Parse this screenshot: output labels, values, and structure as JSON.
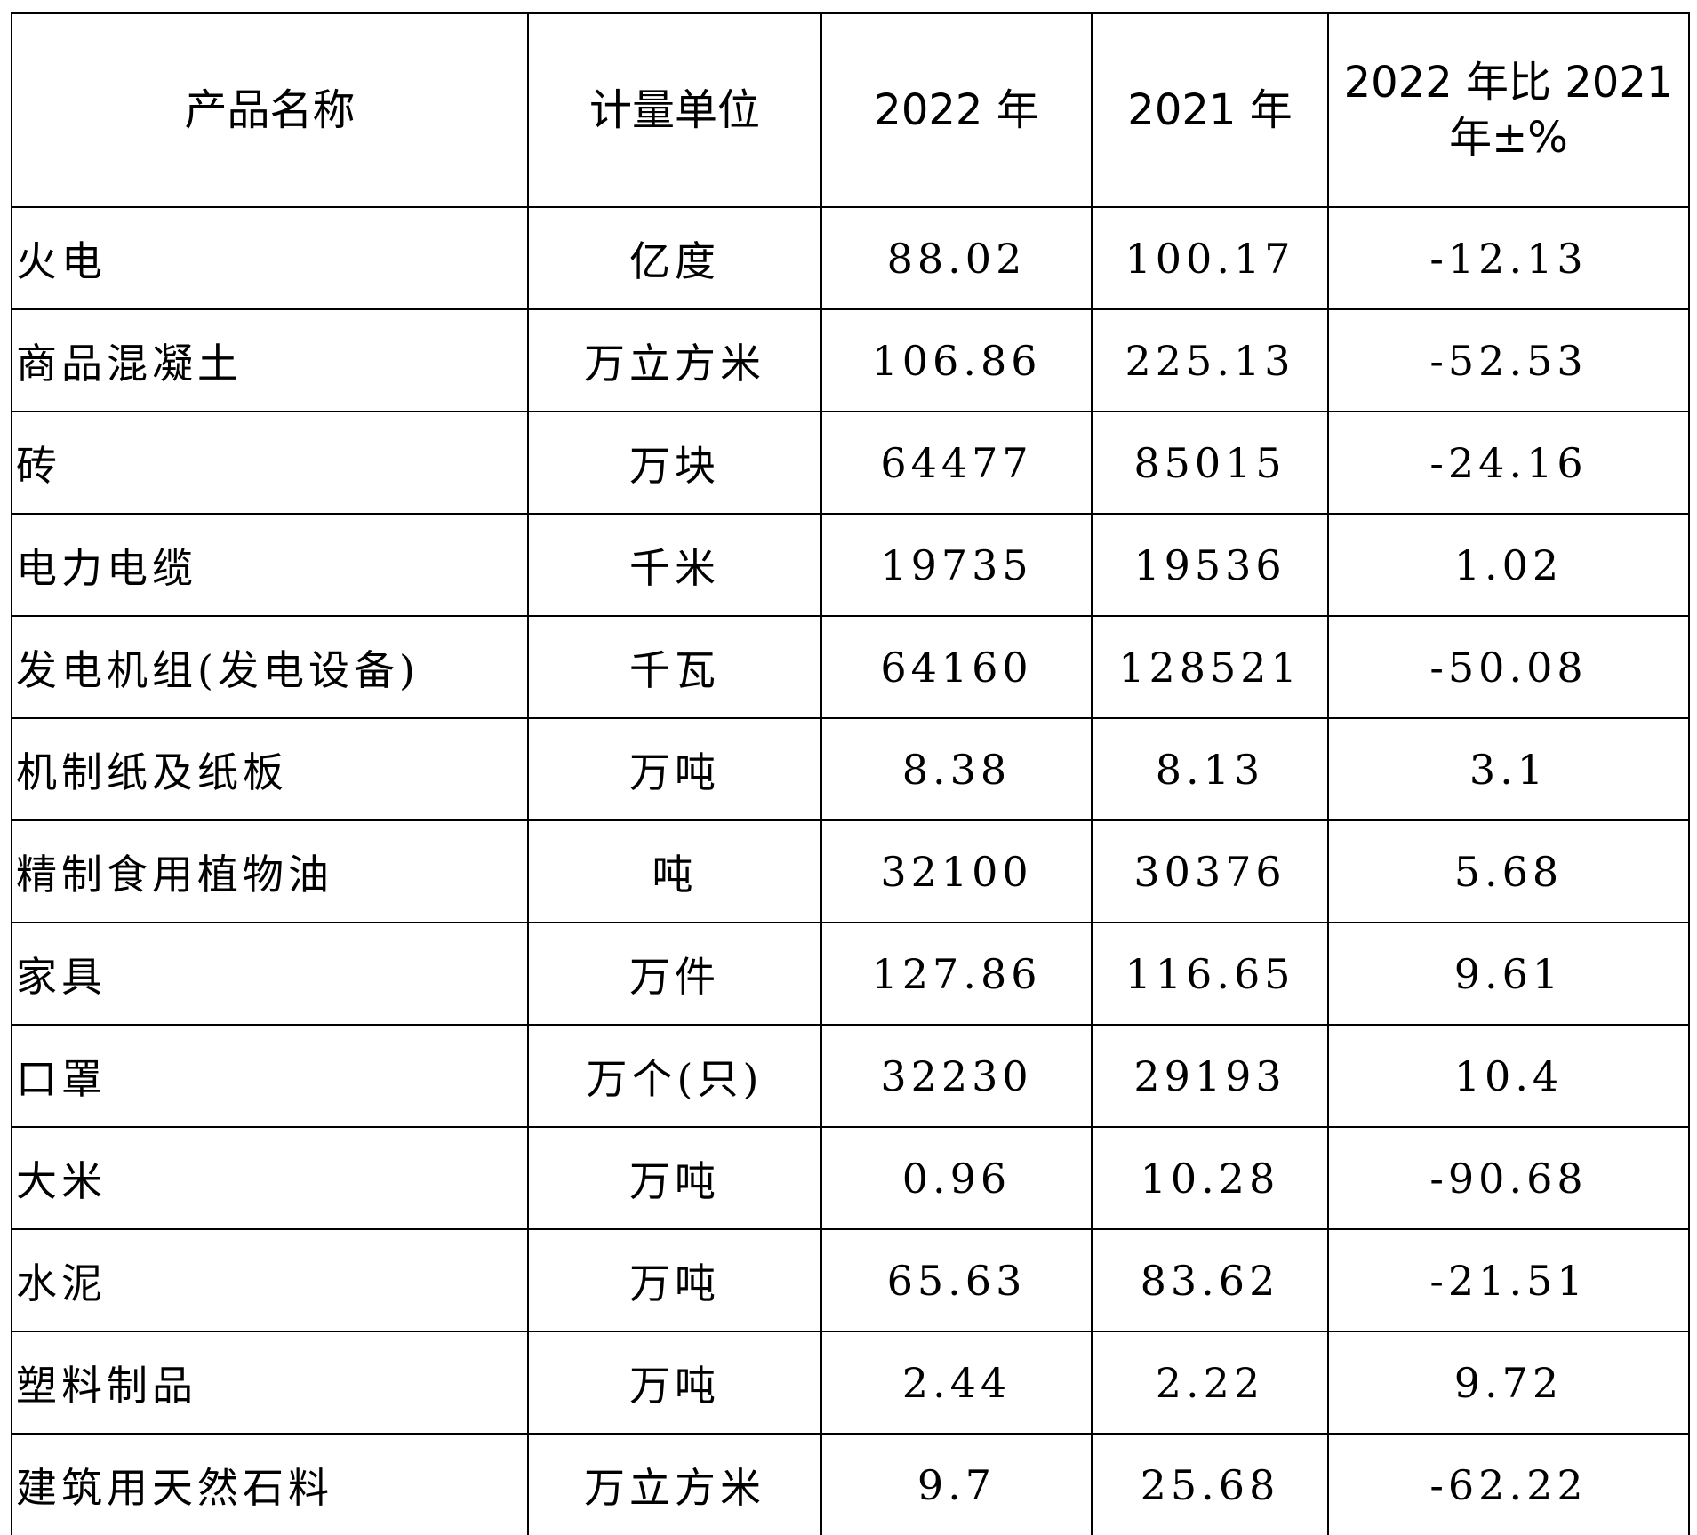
{
  "table": {
    "header": [
      "产品名称",
      "计量单位",
      "2022 年",
      "2021 年",
      "2022 年比 2021 年±%"
    ],
    "rows": [
      [
        "火电",
        "亿度",
        "88.02",
        "100.17",
        "-12.13"
      ],
      [
        "商品混凝土",
        "万立方米",
        "106.86",
        "225.13",
        "-52.53"
      ],
      [
        "砖",
        "万块",
        "64477",
        "85015",
        "-24.16"
      ],
      [
        "电力电缆",
        "千米",
        "19735",
        "19536",
        "1.02"
      ],
      [
        "发电机组(发电设备)",
        "千瓦",
        "64160",
        "128521",
        "-50.08"
      ],
      [
        "机制纸及纸板",
        "万吨",
        "8.38",
        "8.13",
        "3.1"
      ],
      [
        "精制食用植物油",
        "吨",
        "32100",
        "30376",
        "5.68"
      ],
      [
        "家具",
        "万件",
        "127.86",
        "116.65",
        "9.61"
      ],
      [
        "口罩",
        "万个(只)",
        "32230",
        "29193",
        "10.4"
      ],
      [
        "大米",
        "万吨",
        "0.96",
        "10.28",
        "-90.68"
      ],
      [
        "水泥",
        "万吨",
        "65.63",
        "83.62",
        "-21.51"
      ],
      [
        "塑料制品",
        "万吨",
        "2.44",
        "2.22",
        "9.72"
      ],
      [
        "建筑用天然石料",
        "万立方米",
        "9.7",
        "25.68",
        "-62.22"
      ]
    ]
  }
}
